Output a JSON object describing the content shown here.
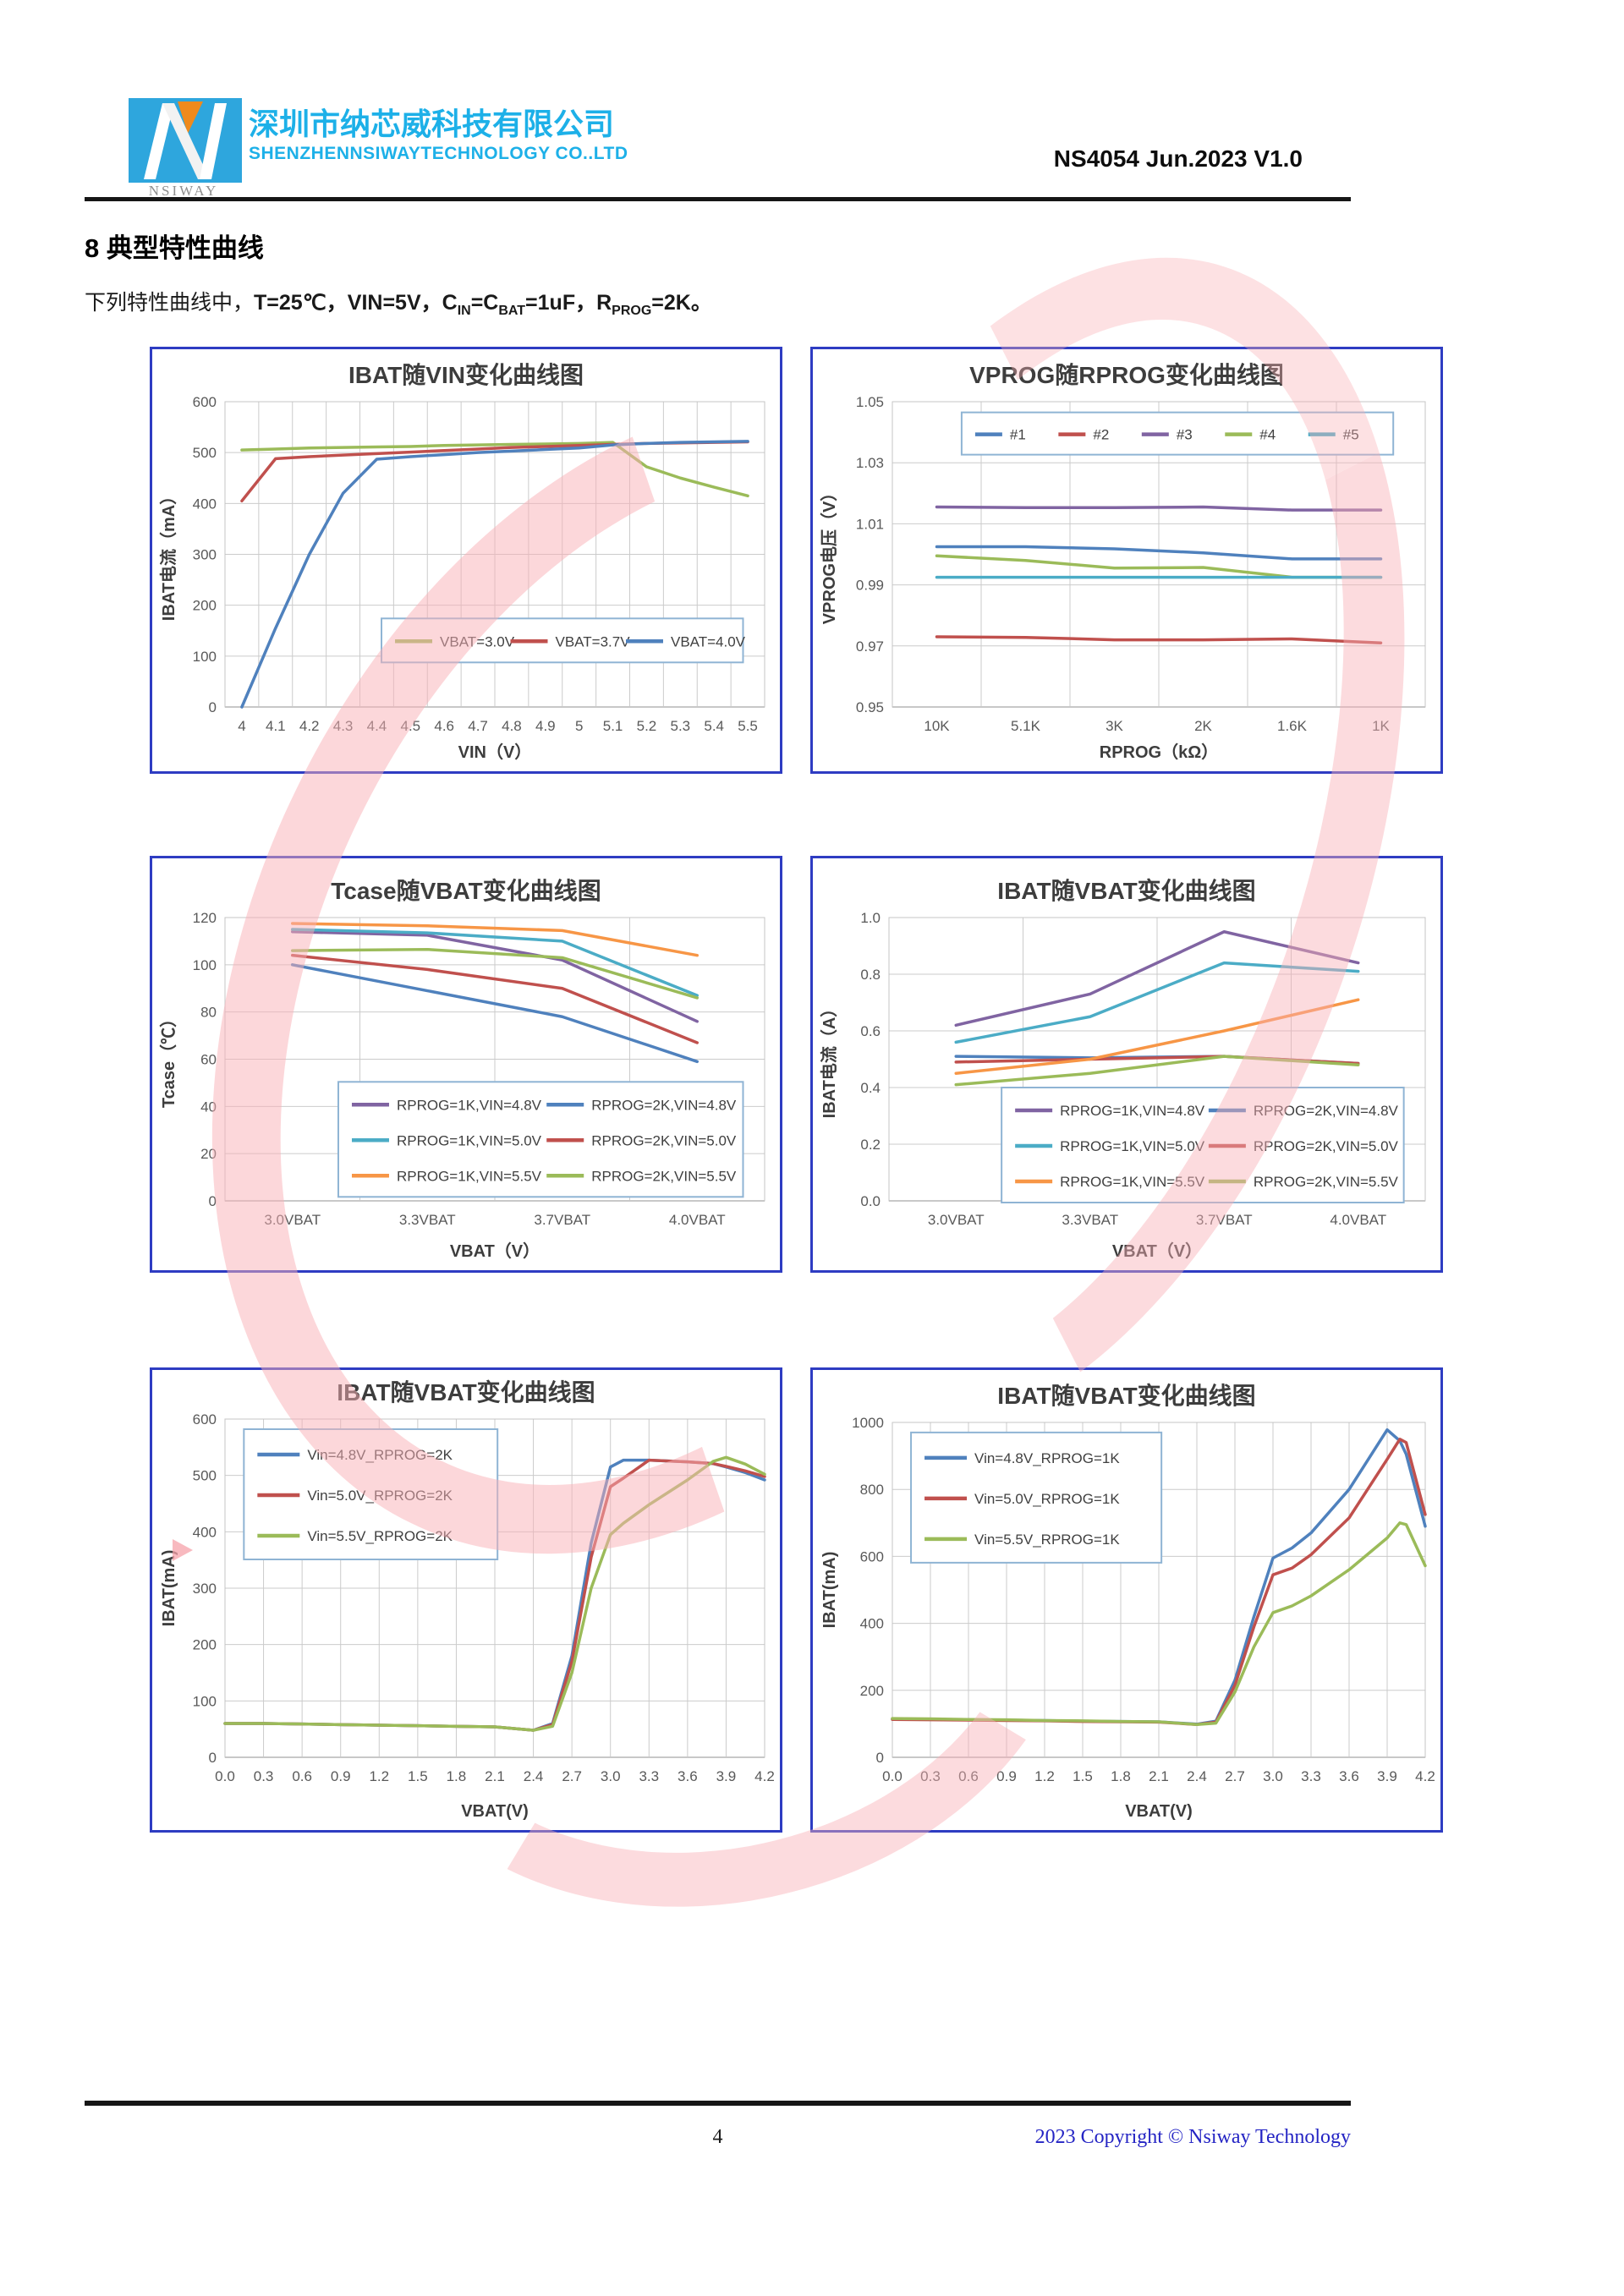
{
  "header": {
    "company_cn": "深圳市纳芯威科技有限公司",
    "company_en": "SHENZHENNSIWAYTECHNOLOGY CO..LTD",
    "logo_text": "NSIWAY",
    "doc_ref": "NS4054 Jun.2023 V1.0"
  },
  "section": {
    "heading": "8  典型特性曲线"
  },
  "intro": {
    "parts": [
      {
        "t": "下列特性曲线中，"
      },
      {
        "t": "T=25℃，VIN=5V，C",
        "b": 1
      },
      {
        "s": "IN"
      },
      {
        "t": "=C",
        "b": 1
      },
      {
        "s": "BAT"
      },
      {
        "t": "=1uF，R",
        "b": 1
      },
      {
        "s": "PROG"
      },
      {
        "t": "=2K。",
        "b": 1
      }
    ]
  },
  "chart_data": [
    {
      "type": "line",
      "title": "IBAT随VIN变化曲线图",
      "xlabel": "VIN（V）",
      "ylabel": "IBAT电流（mA）",
      "x_type": "category",
      "categories": [
        "4",
        "4.1",
        "4.2",
        "4.3",
        "4.4",
        "4.5",
        "4.6",
        "4.7",
        "4.8",
        "4.9",
        "5",
        "5.1",
        "5.2",
        "5.3",
        "5.4",
        "5.5"
      ],
      "yticks": [
        "0",
        "100",
        "200",
        "300",
        "400",
        "500",
        "600"
      ],
      "grid": true,
      "legend_position": "inside-bottom",
      "series": [
        {
          "name": "VBAT=3.0V",
          "color": "#9bbb59",
          "values": [
            505,
            507,
            509,
            510,
            511,
            512,
            514,
            515,
            516,
            517,
            518,
            520,
            472,
            450,
            432,
            415
          ]
        },
        {
          "name": "VBAT=3.7V",
          "color": "#c0504d",
          "values": [
            405,
            488,
            492,
            495,
            498,
            501,
            504,
            507,
            510,
            512,
            514,
            516,
            518,
            519,
            520,
            521
          ]
        },
        {
          "name": "VBAT=4.0V",
          "color": "#4f81bd",
          "values": [
            0,
            155,
            300,
            420,
            487,
            492,
            496,
            500,
            503,
            506,
            509,
            515,
            518,
            520,
            521,
            522
          ]
        }
      ]
    },
    {
      "type": "line",
      "title": "VPROG随RPROG变化曲线图",
      "xlabel": "RPROG（kΩ）",
      "ylabel": "VPROG电压（V）",
      "x_type": "category",
      "categories": [
        "10K",
        "5.1K",
        "3K",
        "2K",
        "1.6K",
        "1K"
      ],
      "yticks": [
        "0.95",
        "0.97",
        "0.99",
        "1.01",
        "1.03",
        "1.05"
      ],
      "grid": true,
      "legend_position": "inside-top",
      "series": [
        {
          "name": "#1",
          "color": "#4f81bd",
          "values": [
            1.0025,
            1.0025,
            1.0018,
            1.0005,
            0.9985,
            0.9985
          ]
        },
        {
          "name": "#2",
          "color": "#c0504d",
          "values": [
            0.973,
            0.9728,
            0.972,
            0.972,
            0.9723,
            0.971
          ]
        },
        {
          "name": "#3",
          "color": "#8064a2",
          "values": [
            1.0155,
            1.0153,
            1.0153,
            1.0155,
            1.0145,
            1.0145
          ]
        },
        {
          "name": "#4",
          "color": "#9bbb59",
          "values": [
            0.9995,
            0.998,
            0.9955,
            0.9957,
            0.9925,
            0.9925
          ]
        },
        {
          "name": "#5",
          "color": "#4bacc6",
          "values": [
            0.9925,
            0.9925,
            0.9925,
            0.9925,
            0.9925,
            0.9925
          ]
        }
      ]
    },
    {
      "type": "line",
      "title": "Tcase随VBAT变化曲线图",
      "xlabel": "VBAT（V）",
      "ylabel": "Tcase（℃）",
      "x_type": "category",
      "categories": [
        "3.0VBAT",
        "3.3VBAT",
        "3.7VBAT",
        "4.0VBAT"
      ],
      "yticks": [
        "0",
        "20",
        "40",
        "60",
        "80",
        "100",
        "120"
      ],
      "grid": true,
      "legend_position": "inside-bottom",
      "series": [
        {
          "name": "RPROG=1K,VIN=4.8V",
          "color": "#8064a2",
          "values": [
            114,
            112.5,
            102,
            76
          ]
        },
        {
          "name": "RPROG=2K,VIN=4.8V",
          "color": "#4f81bd",
          "values": [
            100,
            89,
            78,
            59
          ]
        },
        {
          "name": "RPROG=1K,VIN=5.0V",
          "color": "#4bacc6",
          "values": [
            115,
            113.5,
            110,
            87
          ]
        },
        {
          "name": "RPROG=2K,VIN=5.0V",
          "color": "#c0504d",
          "values": [
            104,
            98,
            90,
            67
          ]
        },
        {
          "name": "RPROG=1K,VIN=5.5V",
          "color": "#f79646",
          "values": [
            117.5,
            116.5,
            114.5,
            104
          ]
        },
        {
          "name": "RPROG=2K,VIN=5.5V",
          "color": "#9bbb59",
          "values": [
            106,
            106.5,
            103,
            86
          ]
        }
      ]
    },
    {
      "type": "line",
      "title": "IBAT随VBAT变化曲线图",
      "xlabel": "VBAT（V）",
      "ylabel": "IBAT电流（A）",
      "x_type": "category",
      "categories": [
        "3.0VBAT",
        "3.3VBAT",
        "3.7VBAT",
        "4.0VBAT"
      ],
      "yticks": [
        "0.0",
        "0.2",
        "0.4",
        "0.6",
        "0.8",
        "1.0"
      ],
      "grid": true,
      "legend_position": "inside-bottom",
      "series": [
        {
          "name": "RPROG=1K,VIN=4.8V",
          "color": "#8064a2",
          "values": [
            0.62,
            0.73,
            0.95,
            0.84
          ]
        },
        {
          "name": "RPROG=2K,VIN=4.8V",
          "color": "#4f81bd",
          "values": [
            0.51,
            0.505,
            0.51,
            0.485
          ]
        },
        {
          "name": "RPROG=1K,VIN=5.0V",
          "color": "#4bacc6",
          "values": [
            0.56,
            0.65,
            0.84,
            0.81
          ]
        },
        {
          "name": "RPROG=2K,VIN=5.0V",
          "color": "#c0504d",
          "values": [
            0.49,
            0.5,
            0.51,
            0.485
          ]
        },
        {
          "name": "RPROG=1K,VIN=5.5V",
          "color": "#f79646",
          "values": [
            0.45,
            0.5,
            0.6,
            0.71
          ]
        },
        {
          "name": "RPROG=2K,VIN=5.5V",
          "color": "#9bbb59",
          "values": [
            0.41,
            0.45,
            0.51,
            0.48
          ]
        }
      ]
    },
    {
      "type": "line",
      "title": "IBAT随VBAT变化曲线图",
      "xlabel": "VBAT(V)",
      "ylabel": "IBAT(mA)",
      "x_type": "numeric",
      "x_range": [
        0,
        4.2
      ],
      "xticks": [
        "0.0",
        "0.3",
        "0.6",
        "0.9",
        "1.2",
        "1.5",
        "1.8",
        "2.1",
        "2.4",
        "2.7",
        "3.0",
        "3.3",
        "3.6",
        "3.9",
        "4.2"
      ],
      "yticks": [
        "0",
        "100",
        "200",
        "300",
        "400",
        "500",
        "600"
      ],
      "grid": true,
      "legend_position": "inside-top-left",
      "x": [
        0,
        0.3,
        0.6,
        0.9,
        1.2,
        1.5,
        1.8,
        2.1,
        2.4,
        2.55,
        2.7,
        2.85,
        3.0,
        3.1,
        3.3,
        3.6,
        3.8,
        3.9,
        4.05,
        4.2
      ],
      "series": [
        {
          "name": "Vin=4.8V_RPROG=2K",
          "color": "#4f81bd",
          "values": [
            60,
            60,
            59,
            58,
            57,
            56,
            55,
            54,
            48,
            60,
            180,
            380,
            515,
            527,
            527,
            524,
            521,
            515,
            505,
            492
          ]
        },
        {
          "name": "Vin=5.0V_RPROG=2K",
          "color": "#c0504d",
          "values": [
            60,
            60,
            59,
            58,
            57,
            56,
            55,
            54,
            48,
            58,
            170,
            355,
            480,
            495,
            527,
            524,
            521,
            516,
            508,
            498
          ]
        },
        {
          "name": "Vin=5.5V_RPROG=2K",
          "color": "#9bbb59",
          "values": [
            60,
            60,
            59,
            58,
            57,
            56,
            55,
            54,
            48,
            55,
            150,
            300,
            395,
            415,
            448,
            492,
            525,
            532,
            520,
            502
          ]
        }
      ]
    },
    {
      "type": "line",
      "title": "IBAT随VBAT变化曲线图",
      "xlabel": "VBAT(V)",
      "ylabel": "IBAT(mA)",
      "x_type": "numeric",
      "x_range": [
        0,
        4.2
      ],
      "xticks": [
        "0.0",
        "0.3",
        "0.6",
        "0.9",
        "1.2",
        "1.5",
        "1.8",
        "2.1",
        "2.4",
        "2.7",
        "3.0",
        "3.3",
        "3.6",
        "3.9",
        "4.2"
      ],
      "yticks": [
        "0",
        "200",
        "400",
        "600",
        "800",
        "1000"
      ],
      "grid": true,
      "legend_position": "inside-top-left",
      "x": [
        0,
        0.3,
        0.6,
        0.9,
        1.2,
        1.5,
        1.8,
        2.1,
        2.4,
        2.55,
        2.7,
        2.85,
        3.0,
        3.15,
        3.3,
        3.6,
        3.9,
        4.0,
        4.05,
        4.2
      ],
      "series": [
        {
          "name": "Vin=4.8V_RPROG=1K",
          "color": "#4f81bd",
          "values": [
            115,
            114,
            112,
            111,
            110,
            108,
            107,
            106,
            99,
            108,
            230,
            420,
            595,
            625,
            670,
            800,
            978,
            945,
            905,
            690
          ]
        },
        {
          "name": "Vin=5.0V_RPROG=1K",
          "color": "#c0504d",
          "values": [
            113,
            112,
            111,
            110,
            109,
            107,
            106,
            105,
            98,
            105,
            215,
            390,
            545,
            565,
            605,
            715,
            890,
            950,
            940,
            725
          ]
        },
        {
          "name": "Vin=5.5V_RPROG=1K",
          "color": "#9bbb59",
          "values": [
            116,
            115,
            113,
            112,
            110,
            109,
            107,
            106,
            98,
            102,
            195,
            330,
            432,
            452,
            482,
            560,
            655,
            700,
            695,
            572
          ]
        }
      ]
    }
  ],
  "footer": {
    "page_number": "4",
    "copyright": "2023 Copyright © Nsiway Technology"
  }
}
